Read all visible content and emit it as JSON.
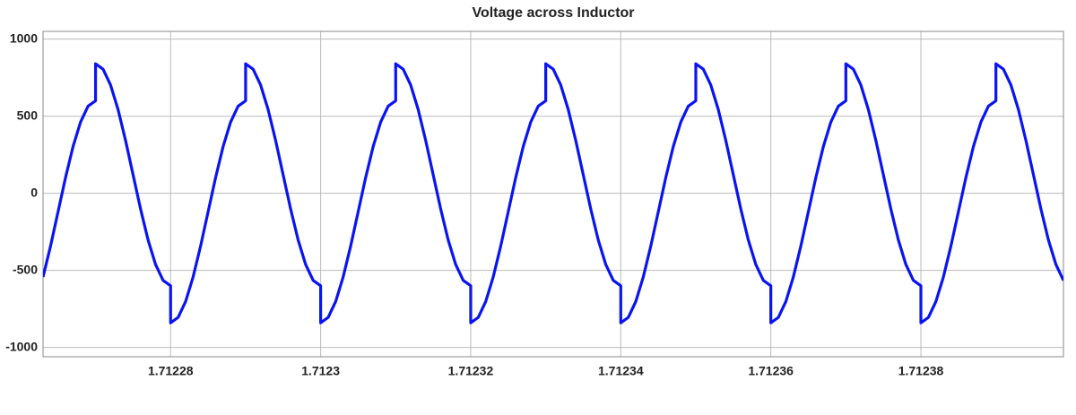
{
  "chart_data": {
    "type": "line",
    "title": "Voltage across Inductor",
    "x": [
      1.712263,
      1.712264,
      1.712265,
      1.712266,
      1.712267,
      1.712268,
      1.712269,
      1.71227,
      1.71227,
      1.712271,
      1.712272,
      1.712273,
      1.712274,
      1.712275,
      1.712276,
      1.712277,
      1.712278,
      1.712279,
      1.71228,
      1.71228,
      1.712281,
      1.712282,
      1.712283,
      1.712284,
      1.712285,
      1.712286,
      1.712287,
      1.712288,
      1.712289,
      1.71229,
      1.71229,
      1.712291,
      1.712292,
      1.712293,
      1.712294,
      1.712295,
      1.712296,
      1.712297,
      1.712298,
      1.712299,
      1.7123,
      1.7123,
      1.712301,
      1.712302,
      1.712303,
      1.712304,
      1.712305,
      1.712306,
      1.712307,
      1.712308,
      1.712309,
      1.71231,
      1.71231,
      1.712311,
      1.712312,
      1.712313,
      1.712314,
      1.712315,
      1.712316,
      1.712317,
      1.712318,
      1.712319,
      1.71232,
      1.71232,
      1.712321,
      1.712322,
      1.712323,
      1.712324,
      1.712325,
      1.712326,
      1.712327,
      1.712328,
      1.712329,
      1.71233,
      1.71233,
      1.712331,
      1.712332,
      1.712333,
      1.712334,
      1.712335,
      1.712336,
      1.712337,
      1.712338,
      1.712339,
      1.71234,
      1.71234,
      1.712341,
      1.712342,
      1.712343,
      1.712344,
      1.712345,
      1.712346,
      1.712347,
      1.712348,
      1.712349,
      1.71235,
      1.71235,
      1.712351,
      1.712352,
      1.712353,
      1.712354,
      1.712355,
      1.712356,
      1.712357,
      1.712358,
      1.712359,
      1.71236,
      1.71236,
      1.712361,
      1.712362,
      1.712363,
      1.712364,
      1.712365,
      1.712366,
      1.712367,
      1.712368,
      1.712369,
      1.71237,
      1.71237,
      1.712371,
      1.712372,
      1.712373,
      1.712374,
      1.712375,
      1.712376,
      1.712377,
      1.712378,
      1.712379,
      1.71238,
      1.71238,
      1.712381,
      1.712382,
      1.712383,
      1.712384,
      1.712385,
      1.712386,
      1.712387,
      1.712388,
      1.712389,
      1.71239,
      1.71239,
      1.712391,
      1.712392,
      1.712393,
      1.712394,
      1.712395,
      1.712396,
      1.712397,
      1.712398,
      1.712399
    ],
    "values": [
      -543,
      -342,
      -120,
      102,
      303,
      462,
      565,
      600,
      840,
      805,
      702,
      543,
      342,
      120,
      -102,
      -303,
      -462,
      -565,
      -600,
      -840,
      -805,
      -702,
      -543,
      -342,
      -120,
      102,
      303,
      462,
      565,
      600,
      840,
      805,
      702,
      543,
      342,
      120,
      -102,
      -303,
      -462,
      -565,
      -600,
      -840,
      -805,
      -702,
      -543,
      -342,
      -120,
      102,
      303,
      462,
      565,
      600,
      840,
      805,
      702,
      543,
      342,
      120,
      -102,
      -303,
      -462,
      -565,
      -600,
      -840,
      -805,
      -702,
      -543,
      -342,
      -120,
      102,
      303,
      462,
      565,
      600,
      840,
      805,
      702,
      543,
      342,
      120,
      -102,
      -303,
      -462,
      -565,
      -600,
      -840,
      -805,
      -702,
      -543,
      -342,
      -120,
      102,
      303,
      462,
      565,
      600,
      840,
      805,
      702,
      543,
      342,
      120,
      -102,
      -303,
      -462,
      -565,
      -600,
      -840,
      -805,
      -702,
      -543,
      -342,
      -120,
      102,
      303,
      462,
      565,
      600,
      840,
      805,
      702,
      543,
      342,
      120,
      -102,
      -303,
      -462,
      -565,
      -600,
      -840,
      -805,
      -702,
      -543,
      -342,
      -120,
      102,
      303,
      462,
      565,
      600,
      840,
      805,
      702,
      543,
      342,
      120,
      -102,
      -303,
      -462,
      -565
    ],
    "color": "#0a14f0",
    "xlim": [
      1.712263,
      1.712399
    ],
    "xticks": [
      1.71228,
      1.7123,
      1.71232,
      1.71234,
      1.71236,
      1.71238
    ],
    "ylim": [
      -1060,
      1050
    ],
    "yticks": [
      -1000,
      -500,
      0,
      500,
      1000
    ],
    "grid": true
  }
}
